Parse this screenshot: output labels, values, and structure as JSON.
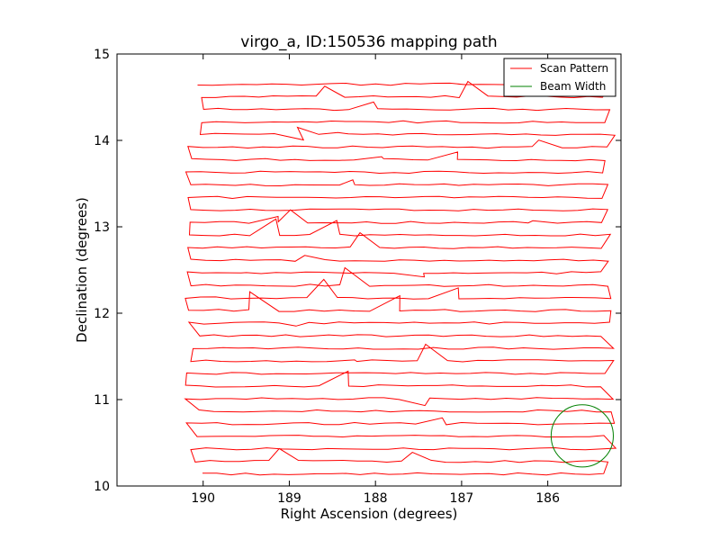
{
  "chart_data": {
    "type": "line",
    "title": "virgo_a, ID:150536 mapping path",
    "xlabel": "Right Ascension (degrees)",
    "ylabel": "Declination (degrees)",
    "xlim": [
      191.0,
      185.15
    ],
    "ylim": [
      10,
      15
    ],
    "x_inverted": true,
    "grid": false,
    "legend_position": "top-right",
    "x_ticks": [
      {
        "value": 190,
        "label": "190"
      },
      {
        "value": 189,
        "label": "189"
      },
      {
        "value": 188,
        "label": "188"
      },
      {
        "value": 187,
        "label": "187"
      },
      {
        "value": 186,
        "label": "186"
      }
    ],
    "y_ticks": [
      {
        "value": 10,
        "label": "10"
      },
      {
        "value": 11,
        "label": "11"
      },
      {
        "value": 12,
        "label": "12"
      },
      {
        "value": 13,
        "label": "13"
      },
      {
        "value": 14,
        "label": "14"
      },
      {
        "value": 15,
        "label": "15"
      }
    ],
    "scan_rows": {
      "count": 32,
      "dec_start": 10.14,
      "dec_end": 14.65,
      "ra_east": 190.1,
      "ra_west": 185.3
    },
    "series": [
      {
        "name": "Scan Pattern",
        "color": "#ff0000",
        "kind": "raster-scan"
      },
      {
        "name": "Beam Width",
        "color": "#008000",
        "kind": "circle",
        "center": [
          185.6,
          10.58
        ],
        "radius_dec": 0.36
      }
    ]
  }
}
